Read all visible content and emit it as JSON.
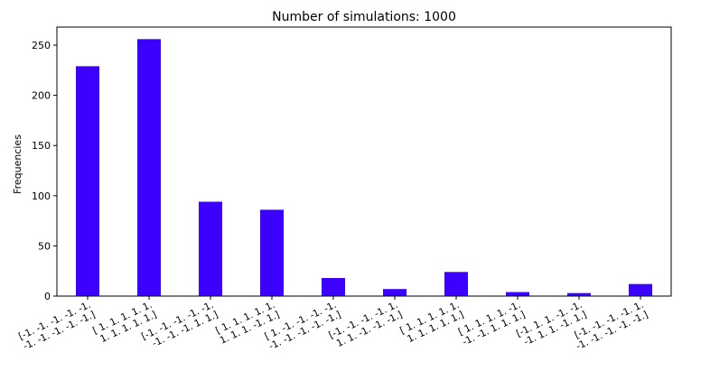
{
  "chart_data": {
    "type": "bar",
    "title": "Number of simulations: 1000",
    "xlabel": "",
    "ylabel": "Frequencies",
    "ylim": [
      0,
      268
    ],
    "yticks": [
      0,
      50,
      100,
      150,
      200,
      250
    ],
    "bar_color": "#3c00ff",
    "grid": false,
    "categories": [
      [
        "[-1. -1. -1. -1. -1.",
        " -1. -1. -1. -1. -1.]"
      ],
      [
        "[ 1.  1.  1.  1.  1.",
        "  1.  1.  1.  1.  1.]"
      ],
      [
        "[-1. -1. -1. -1. -1.",
        " -1. -1. -1.  1.  1.]"
      ],
      [
        "[ 1.  1.  1.  1.  1.",
        "  1.  1.  1. -1.  1.]"
      ],
      [
        "[ 1. -1. -1. -1. -1.",
        " -1. -1. -1. -1. -1.]"
      ],
      [
        "[-1. -1. -1. -1.  1.",
        "  1.  1. -1. -1. -1.]"
      ],
      [
        "[ 1.  1.  1.  1.  1.",
        "  1.  1.  1.  1.  1.]"
      ],
      [
        "[ 1.  1.  1.  1. -1.",
        " -1. -1.  1.  1.  1.]"
      ],
      [
        "[-1.  1.  1. -1. -1.",
        " -1.  1.  1. -1.  1.]"
      ],
      [
        "[-1. -1. -1. -1.  1.",
        " -1. -1. -1. -1. -1.]"
      ]
    ],
    "values": [
      229,
      256,
      94,
      86,
      18,
      7,
      24,
      4,
      3,
      12
    ]
  }
}
